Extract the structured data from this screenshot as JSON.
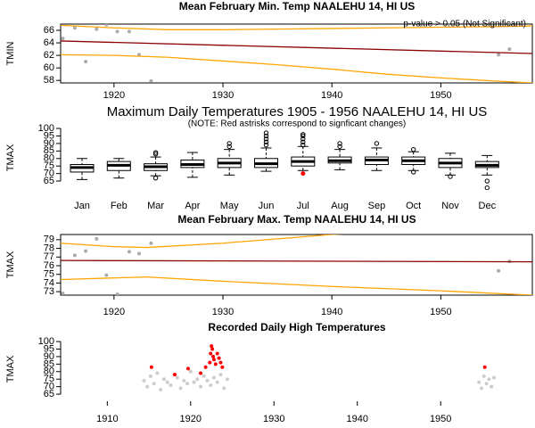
{
  "chart_data": [
    {
      "type": "scatter",
      "title": "Mean February Min. Temp NAALEHU 14, HI US",
      "y_label": "TMIN",
      "annotation": "p-value > 0.05 (Not Significant)",
      "frame": true,
      "xlim": [
        1915.1,
        1958.4
      ],
      "xticks": [
        1920,
        1930,
        1940,
        1950
      ],
      "ylim": [
        57.6,
        67
      ],
      "yticks": [
        58,
        60,
        62,
        64,
        66
      ],
      "series": [
        {
          "style": "points",
          "color": "#aaaaaa",
          "x": [
            1915.3,
            1916.4,
            1917.4,
            1918.4,
            1919.3,
            1920.3,
            1921.4,
            1922.3,
            1923.4,
            1955.3,
            1956.3
          ],
          "values": [
            64.7,
            66.4,
            61.0,
            66.2,
            66.9,
            65.8,
            65.8,
            62.1,
            57.9,
            62.1,
            63.0
          ]
        },
        {
          "style": "line",
          "color": "#8b0000",
          "x": [
            1915.1,
            1958.4
          ],
          "values": [
            64.3,
            62.3
          ]
        },
        {
          "style": "line",
          "color": "#ffa500",
          "x": [
            1915.1,
            1920,
            1925,
            1930,
            1935,
            1940,
            1945,
            1950,
            1955,
            1958.4
          ],
          "values": [
            66.8,
            66.4,
            66.1,
            66.1,
            66.2,
            66.3,
            66.4,
            66.5,
            66.6,
            66.7
          ]
        },
        {
          "style": "line",
          "color": "#ffa500",
          "x": [
            1915.1,
            1920,
            1925,
            1930,
            1935,
            1940,
            1945,
            1950,
            1955,
            1958.4
          ],
          "values": [
            62.1,
            62.0,
            61.7,
            61.1,
            60.5,
            59.8,
            59.0,
            58.4,
            57.9,
            57.6
          ]
        }
      ]
    },
    {
      "type": "box",
      "title": "Maximum Daily Temperatures 1905 - 1956 NAALEHU 14, HI US",
      "subtitle": "(NOTE: Red astrisks correspond to signficant changes)",
      "y_label": "TMAX",
      "frame": false,
      "ylim": [
        59.1,
        101.8
      ],
      "yticks": [
        65,
        70,
        75,
        80,
        85,
        90,
        95,
        100
      ],
      "categories": [
        "Jan",
        "Feb",
        "Mar",
        "Apr",
        "May",
        "Jun",
        "Jul",
        "Aug",
        "Sep",
        "Oct",
        "Nov",
        "Dec"
      ],
      "box_color": "#000000",
      "significant_color": "#ff0000",
      "stats": [
        [
          66,
          71,
          74,
          76,
          80
        ],
        [
          67,
          72,
          75.5,
          78,
          80
        ],
        [
          68.5,
          72,
          74.5,
          76.5,
          81
        ],
        [
          67.5,
          74,
          76,
          79,
          84
        ],
        [
          69,
          74,
          77,
          80,
          86
        ],
        [
          71.5,
          74,
          76.5,
          80,
          87
        ],
        [
          72,
          75,
          78,
          81,
          88
        ],
        [
          72.5,
          77,
          78.5,
          81,
          86
        ],
        [
          72,
          76,
          79,
          81,
          87
        ],
        [
          72,
          76,
          78.5,
          81,
          84.5
        ],
        [
          69,
          74,
          77,
          80,
          83.5
        ],
        [
          69,
          74,
          75.5,
          78,
          82
        ]
      ],
      "outliers": [
        [],
        [],
        [
          83,
          84,
          67
        ],
        [],
        [
          88,
          90
        ],
        [
          89,
          91,
          93,
          95,
          97
        ],
        [
          89,
          91,
          93,
          95,
          96
        ],
        [
          88,
          90
        ],
        [
          90
        ],
        [
          86,
          71
        ],
        [
          68
        ],
        [
          65,
          60.5
        ]
      ],
      "significant": [
        [],
        [],
        [],
        [],
        [],
        [],
        [
          70
        ],
        [],
        [],
        [],
        [],
        []
      ]
    },
    {
      "type": "scatter",
      "title": "Mean February Max. Temp NAALEHU 14, HI US",
      "y_label": "TMAX",
      "frame": true,
      "xlim": [
        1915.1,
        1958.4
      ],
      "xticks": [
        1920,
        1930,
        1940,
        1950
      ],
      "ylim": [
        72.6,
        79.6
      ],
      "yticks": [
        73,
        74,
        75,
        76,
        77,
        78,
        79
      ],
      "series": [
        {
          "style": "points",
          "color": "#aaaaaa",
          "x": [
            1915.3,
            1916.4,
            1917.4,
            1918.4,
            1919.3,
            1920.3,
            1921.4,
            1922.3,
            1923.4,
            1955.3,
            1956.3
          ],
          "values": [
            72.8,
            77.2,
            77.7,
            79.1,
            74.9,
            72.7,
            77.6,
            77.4,
            78.6,
            75.4,
            76.5
          ]
        },
        {
          "style": "line",
          "color": "#8b0000",
          "x": [
            1915.1,
            1958.4
          ],
          "values": [
            76.6,
            76.45
          ]
        },
        {
          "style": "line",
          "color": "#ffa500",
          "x": [
            1915.1,
            1920,
            1923,
            1930,
            1935,
            1940,
            1945
          ],
          "values": [
            78.6,
            78.2,
            78.1,
            78.6,
            79.1,
            79.6,
            79.9
          ]
        },
        {
          "style": "line",
          "color": "#ffa500",
          "x": [
            1915.1,
            1923,
            1930,
            1940,
            1950,
            1958.4
          ],
          "values": [
            74.4,
            74.7,
            74.2,
            73.6,
            73.1,
            72.6
          ]
        }
      ]
    },
    {
      "type": "scatter",
      "title": "Recorded Daily High Temperatures",
      "y_label": "TMAX",
      "frame": false,
      "xlim": [
        1904.4,
        1961
      ],
      "xticks": [
        1910,
        1920,
        1930,
        1940,
        1950
      ],
      "ylim": [
        60.3,
        103
      ],
      "yticks": [
        65,
        70,
        75,
        80,
        85,
        90,
        95,
        100
      ],
      "series": [
        {
          "style": "points",
          "color": "#cccccc",
          "x": [
            1914.4,
            1914.8,
            1915.2,
            1915.6,
            1916.0,
            1916.4,
            1916.8,
            1917.2,
            1917.6,
            1918.0,
            1918.4,
            1918.8,
            1919.2,
            1919.6,
            1920.0,
            1920.4,
            1920.8,
            1921.2,
            1921.6,
            1922.0,
            1922.4,
            1922.8,
            1923.2,
            1923.6,
            1924.0,
            1924.4,
            1954.6,
            1954.9,
            1955.2,
            1955.5,
            1955.8,
            1956.1,
            1956.4
          ],
          "values": [
            74,
            70,
            77,
            72,
            79,
            68,
            75,
            73,
            71,
            78,
            76,
            69,
            74,
            72,
            80,
            73,
            75,
            70,
            77,
            74,
            71,
            76,
            73,
            78,
            69,
            75,
            73,
            69,
            77,
            72,
            75,
            70,
            76
          ]
        },
        {
          "style": "points",
          "color": "#ff0000",
          "x": [
            1915.3,
            1918.1,
            1919.7,
            1921.2,
            1921.8,
            1922.3,
            1922.4,
            1922.5,
            1922.6,
            1922.7,
            1922.8,
            1923.0,
            1923.2,
            1923.4,
            1923.6,
            1923.8,
            1955.3
          ],
          "values": [
            83,
            78,
            82,
            79,
            83,
            86,
            92,
            97,
            95,
            90,
            88,
            85,
            92,
            89,
            86,
            83,
            83
          ]
        }
      ]
    }
  ]
}
